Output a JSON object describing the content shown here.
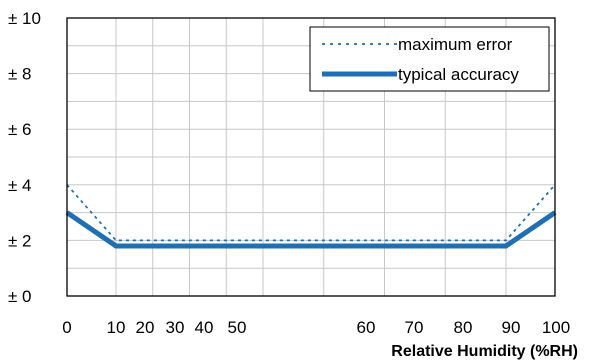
{
  "chart_data": {
    "type": "line",
    "title": "",
    "xlabel": "Relative Humidity (%RH)",
    "ylabel": "",
    "xlim": [
      0,
      100
    ],
    "ylim": [
      0,
      10
    ],
    "x_ticks": [
      0,
      10,
      20,
      30,
      40,
      50,
      60,
      70,
      80,
      90,
      100
    ],
    "x_tick_labels": [
      "0",
      "10",
      "20",
      "30",
      "40",
      "50",
      "60",
      "70",
      "80",
      "90",
      "100"
    ],
    "y_ticks": [
      0,
      2,
      4,
      6,
      8,
      10
    ],
    "y_tick_labels": [
      "± 0",
      "± 2",
      "± 4",
      "± 6",
      "± 8",
      "± 10"
    ],
    "grid": true,
    "legend_position": "top-right",
    "series": [
      {
        "name": "maximum error",
        "style": "dotted",
        "color": "#1f6fb2",
        "x": [
          0,
          10,
          90,
          100
        ],
        "y": [
          4,
          2,
          2,
          4
        ]
      },
      {
        "name": "typical accuracy",
        "style": "solid-thick",
        "color": "#1f6fb2",
        "x": [
          0,
          10,
          90,
          100
        ],
        "y": [
          3,
          1.8,
          1.8,
          3
        ]
      }
    ]
  }
}
